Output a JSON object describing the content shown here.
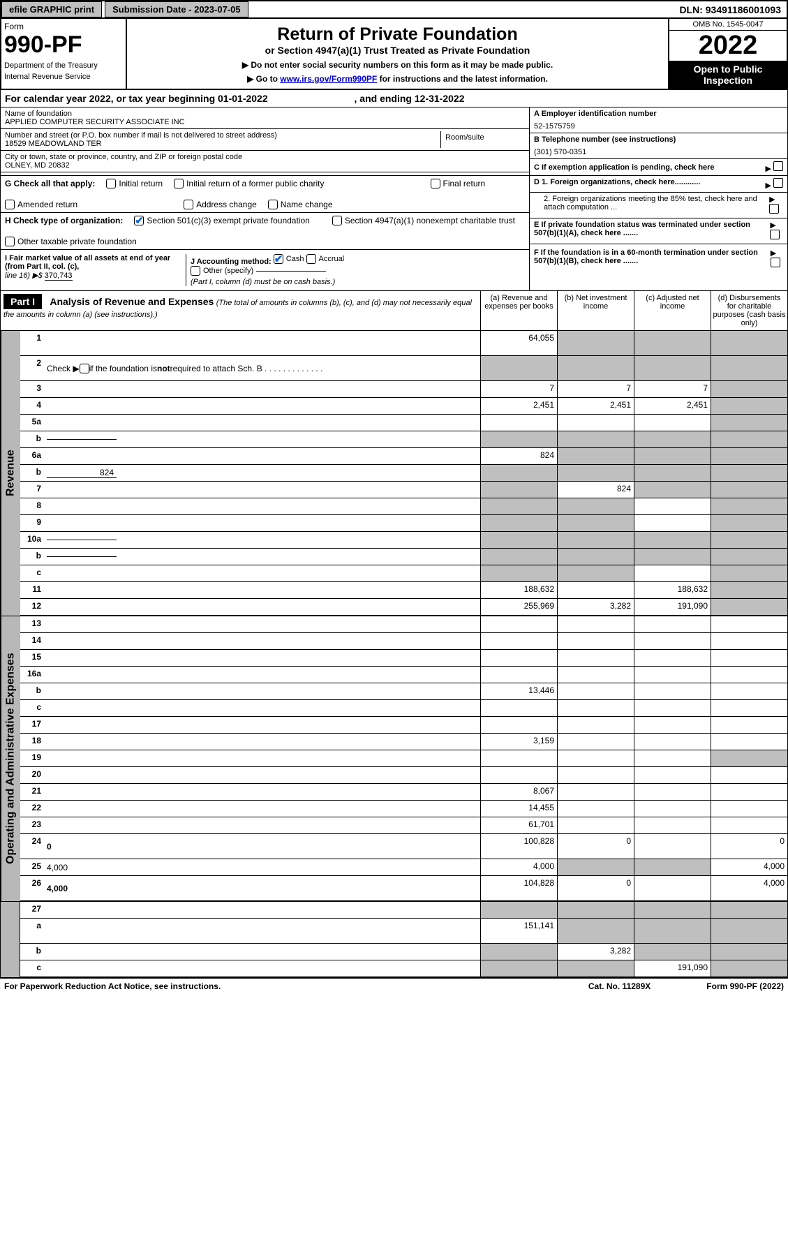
{
  "topbar": {
    "efile": "efile GRAPHIC print",
    "submission_label": "Submission Date - 2023-07-05",
    "dln": "DLN: 93491186001093"
  },
  "header": {
    "form_label": "Form",
    "form_number": "990-PF",
    "dept1": "Department of the Treasury",
    "dept2": "Internal Revenue Service",
    "title": "Return of Private Foundation",
    "subtitle": "or Section 4947(a)(1) Trust Treated as Private Foundation",
    "note1": "▶ Do not enter social security numbers on this form as it may be made public.",
    "note2_pre": "▶ Go to ",
    "note2_link": "www.irs.gov/Form990PF",
    "note2_post": " for instructions and the latest information.",
    "omb": "OMB No. 1545-0047",
    "year": "2022",
    "open_pub1": "Open to Public",
    "open_pub2": "Inspection"
  },
  "calendar": {
    "text_pre": "For calendar year 2022, or tax year beginning ",
    "begin": "01-01-2022",
    "text_mid": " , and ending ",
    "end": "12-31-2022"
  },
  "info": {
    "name_label": "Name of foundation",
    "name": "APPLIED COMPUTER SECURITY ASSOCIATE INC",
    "street_label": "Number and street (or P.O. box number if mail is not delivered to street address)",
    "street": "18529 MEADOWLAND TER",
    "room_label": "Room/suite",
    "city_label": "City or town, state or province, country, and ZIP or foreign postal code",
    "city": "OLNEY, MD  20832",
    "a_label": "A Employer identification number",
    "a_val": "52-1575759",
    "b_label": "B Telephone number (see instructions)",
    "b_val": "(301) 570-0351",
    "c_label": "C If exemption application is pending, check here",
    "g_label": "G Check all that apply:",
    "g_opts": [
      "Initial return",
      "Initial return of a former public charity",
      "Final return",
      "Amended return",
      "Address change",
      "Name change"
    ],
    "d1": "D 1. Foreign organizations, check here............",
    "d2": "2. Foreign organizations meeting the 85% test, check here and attach computation ...",
    "h_label": "H Check type of organization:",
    "h_opt1": "Section 501(c)(3) exempt private foundation",
    "h_opt2": "Section 4947(a)(1) nonexempt charitable trust",
    "h_opt3": "Other taxable private foundation",
    "e_label": "E  If private foundation status was terminated under section 507(b)(1)(A), check here .......",
    "i_label": "I Fair market value of all assets at end of year (from Part II, col. (c),",
    "i_line": "line 16) ▶$",
    "i_val": "370,743",
    "j_label": "J Accounting method:",
    "j_cash": "Cash",
    "j_accrual": "Accrual",
    "j_other": "Other (specify)",
    "j_note": "(Part I, column (d) must be on cash basis.)",
    "f_label": "F  If the foundation is in a 60-month termination under section 507(b)(1)(B), check here ......."
  },
  "part1": {
    "label": "Part I",
    "title": "Analysis of Revenue and Expenses",
    "title_note": "(The total of amounts in columns (b), (c), and (d) may not necessarily equal the amounts in column (a) (see instructions).)",
    "col_a": "(a) Revenue and expenses per books",
    "col_b": "(b) Net investment income",
    "col_c": "(c) Adjusted net income",
    "col_d": "(d) Disbursements for charitable purposes (cash basis only)"
  },
  "sections": {
    "revenue": "Revenue",
    "expenses": "Operating and Administrative Expenses"
  },
  "rows": [
    {
      "n": "1",
      "d": "",
      "a": "64,055",
      "b": "",
      "c": "",
      "shade_b": true,
      "shade_c": true,
      "shade_d": true,
      "tall": true
    },
    {
      "n": "2",
      "d": "",
      "a": "",
      "b": "",
      "c": "",
      "shade_a": true,
      "shade_b": true,
      "shade_c": true,
      "shade_d": true,
      "tall": true,
      "html": true
    },
    {
      "n": "3",
      "d": "",
      "a": "7",
      "b": "7",
      "c": "7",
      "shade_d": true
    },
    {
      "n": "4",
      "d": "",
      "a": "2,451",
      "b": "2,451",
      "c": "2,451",
      "shade_d": true
    },
    {
      "n": "5a",
      "d": "",
      "a": "",
      "b": "",
      "c": "",
      "shade_d": true
    },
    {
      "n": "b",
      "d": "",
      "a": "",
      "b": "",
      "c": "",
      "shade_a": true,
      "shade_b": true,
      "shade_c": true,
      "shade_d": true,
      "inline": true
    },
    {
      "n": "6a",
      "d": "",
      "a": "824",
      "b": "",
      "c": "",
      "shade_b": true,
      "shade_c": true,
      "shade_d": true
    },
    {
      "n": "b",
      "d": "",
      "a": "",
      "b": "",
      "c": "",
      "shade_a": true,
      "shade_b": true,
      "shade_c": true,
      "shade_d": true,
      "inline": true,
      "inline_val": "824"
    },
    {
      "n": "7",
      "d": "",
      "a": "",
      "b": "824",
      "c": "",
      "shade_a": true,
      "shade_c": true,
      "shade_d": true
    },
    {
      "n": "8",
      "d": "",
      "a": "",
      "b": "",
      "c": "",
      "shade_a": true,
      "shade_b": true,
      "shade_d": true
    },
    {
      "n": "9",
      "d": "",
      "a": "",
      "b": "",
      "c": "",
      "shade_a": true,
      "shade_b": true,
      "shade_d": true
    },
    {
      "n": "10a",
      "d": "",
      "a": "",
      "b": "",
      "c": "",
      "shade_a": true,
      "shade_b": true,
      "shade_c": true,
      "shade_d": true,
      "inline": true
    },
    {
      "n": "b",
      "d": "",
      "a": "",
      "b": "",
      "c": "",
      "shade_a": true,
      "shade_b": true,
      "shade_c": true,
      "shade_d": true,
      "inline": true
    },
    {
      "n": "c",
      "d": "",
      "a": "",
      "b": "",
      "c": "",
      "shade_a": true,
      "shade_b": true,
      "shade_d": true
    },
    {
      "n": "11",
      "d": "",
      "a": "188,632",
      "b": "",
      "c": "188,632",
      "shade_d": true
    },
    {
      "n": "12",
      "d": "",
      "a": "255,969",
      "b": "3,282",
      "c": "191,090",
      "shade_d": true,
      "bold": true
    }
  ],
  "exp_rows": [
    {
      "n": "13",
      "d": "",
      "a": "",
      "b": "",
      "c": ""
    },
    {
      "n": "14",
      "d": "",
      "a": "",
      "b": "",
      "c": ""
    },
    {
      "n": "15",
      "d": "",
      "a": "",
      "b": "",
      "c": ""
    },
    {
      "n": "16a",
      "d": "",
      "a": "",
      "b": "",
      "c": ""
    },
    {
      "n": "b",
      "d": "",
      "a": "13,446",
      "b": "",
      "c": ""
    },
    {
      "n": "c",
      "d": "",
      "a": "",
      "b": "",
      "c": ""
    },
    {
      "n": "17",
      "d": "",
      "a": "",
      "b": "",
      "c": ""
    },
    {
      "n": "18",
      "d": "",
      "a": "3,159",
      "b": "",
      "c": ""
    },
    {
      "n": "19",
      "d": "",
      "a": "",
      "b": "",
      "c": "",
      "shade_d": true
    },
    {
      "n": "20",
      "d": "",
      "a": "",
      "b": "",
      "c": ""
    },
    {
      "n": "21",
      "d": "",
      "a": "8,067",
      "b": "",
      "c": ""
    },
    {
      "n": "22",
      "d": "",
      "a": "14,455",
      "b": "",
      "c": ""
    },
    {
      "n": "23",
      "d": "",
      "a": "61,701",
      "b": "",
      "c": ""
    },
    {
      "n": "24",
      "d": "0",
      "a": "100,828",
      "b": "0",
      "c": "",
      "bold": true,
      "tall": true
    },
    {
      "n": "25",
      "d": "4,000",
      "a": "4,000",
      "b": "",
      "c": "",
      "shade_b": true,
      "shade_c": true
    },
    {
      "n": "26",
      "d": "4,000",
      "a": "104,828",
      "b": "0",
      "c": "",
      "bold": true,
      "tall": true
    }
  ],
  "bottom_rows": [
    {
      "n": "27",
      "d": "",
      "a": "",
      "b": "",
      "c": "",
      "shade_a": true,
      "shade_b": true,
      "shade_c": true,
      "shade_d": true
    },
    {
      "n": "a",
      "d": "",
      "a": "151,141",
      "b": "",
      "c": "",
      "shade_b": true,
      "shade_c": true,
      "shade_d": true,
      "bold": true,
      "tall": true
    },
    {
      "n": "b",
      "d": "",
      "a": "",
      "b": "3,282",
      "c": "",
      "shade_a": true,
      "shade_c": true,
      "shade_d": true,
      "bold": true
    },
    {
      "n": "c",
      "d": "",
      "a": "",
      "b": "",
      "c": "191,090",
      "shade_a": true,
      "shade_b": true,
      "shade_d": true,
      "bold": true
    }
  ],
  "footer": {
    "left": "For Paperwork Reduction Act Notice, see instructions.",
    "cat": "Cat. No. 11289X",
    "form": "Form 990-PF (2022)"
  }
}
